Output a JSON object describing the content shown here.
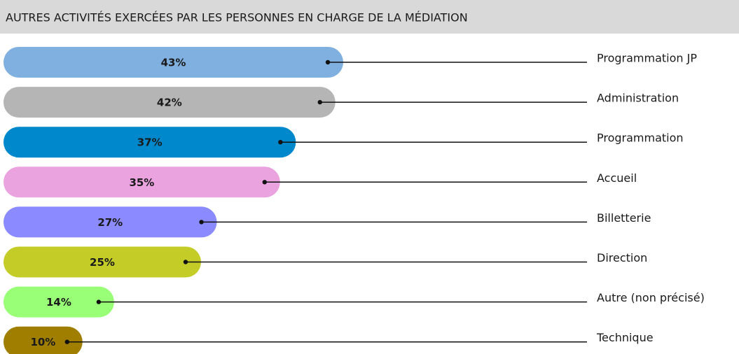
{
  "chart_data": {
    "type": "bar",
    "orientation": "horizontal",
    "title": "AUTRES ACTIVITÉS EXERCÉES PAR LES PERSONNES EN CHARGE DE LA MÉDIATION",
    "categories": [
      "Programmation JP",
      "Administration",
      "Programmation",
      "Accueil",
      "Billetterie",
      "Direction",
      "Autre (non précisé)",
      "Technique"
    ],
    "values": [
      43,
      42,
      37,
      35,
      27,
      25,
      14,
      10
    ],
    "value_labels": [
      "43%",
      "42%",
      "37%",
      "35%",
      "27%",
      "25%",
      "14%",
      "10%"
    ],
    "colors": [
      "#7fb0e0",
      "#b5b5b5",
      "#0088cc",
      "#eba3e0",
      "#8b8bff",
      "#c4cc28",
      "#99ff77",
      "#a07f00"
    ]
  }
}
